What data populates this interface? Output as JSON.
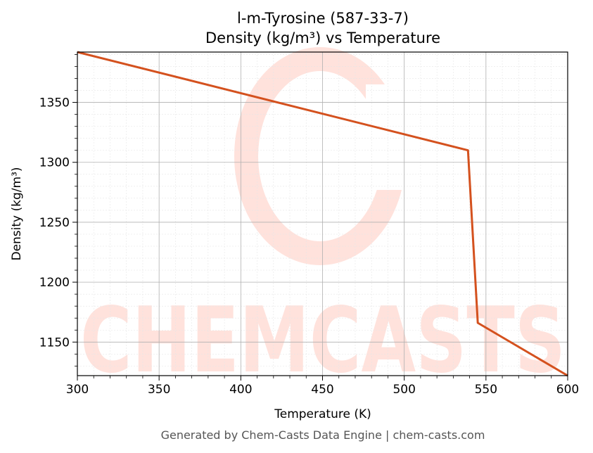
{
  "chart_data": {
    "type": "line",
    "title": "l-m-Tyrosine (587-33-7)",
    "subtitle": "Density (kg/m³) vs Temperature",
    "xlabel": "Temperature (K)",
    "ylabel": "Density (kg/m³)",
    "xlim": [
      300,
      600
    ],
    "ylim": [
      1122,
      1392
    ],
    "xticks": [
      300,
      350,
      400,
      450,
      500,
      550,
      600
    ],
    "yticks": [
      1150,
      1200,
      1250,
      1300,
      1350
    ],
    "grid": true,
    "series": [
      {
        "color": "#d4511e",
        "x": [
          300,
          539,
          545,
          600
        ],
        "y": [
          1392,
          1310,
          1166,
          1122
        ]
      }
    ]
  },
  "watermark": {
    "text": "CHEMCASTS",
    "color": "#ffe2dc"
  },
  "footer": "Generated by Chem-Casts Data Engine | chem-casts.com"
}
